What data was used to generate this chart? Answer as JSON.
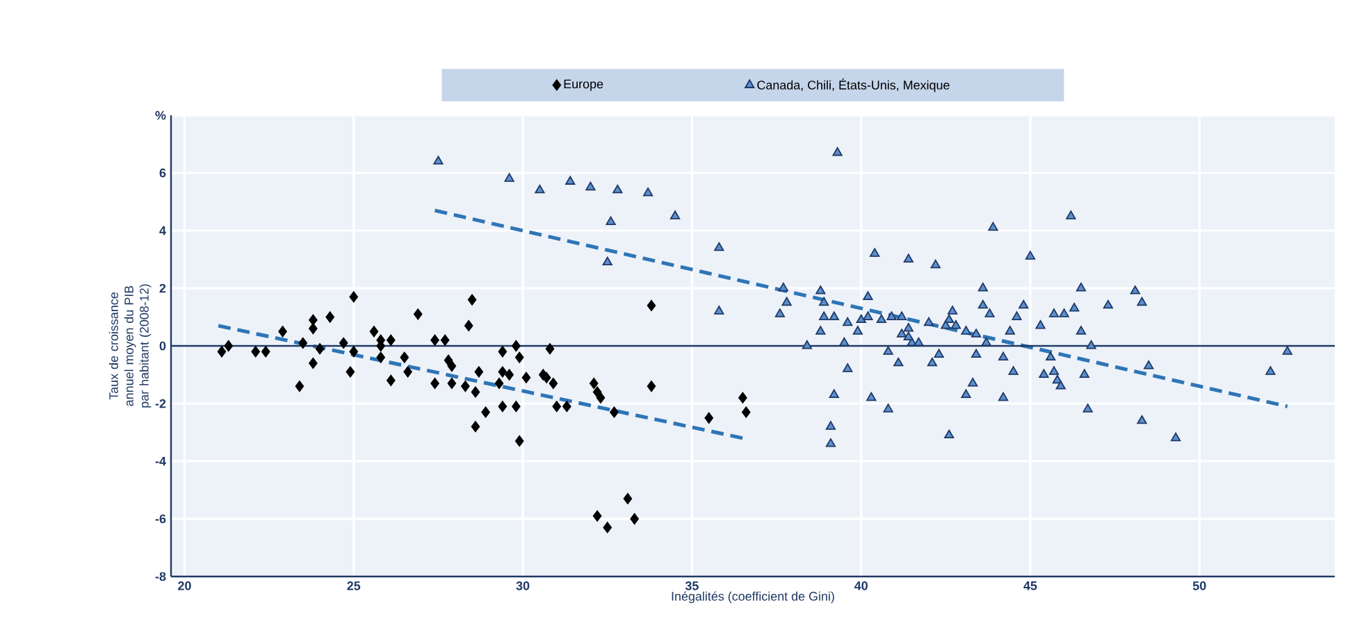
{
  "chart_data": {
    "type": "scatter",
    "xlabel": "Inégalités  (coefficient  de Gini)",
    "ylabel": "Taux de croissance annuel moyen du PIB par habitant (2008-12)",
    "xlim": [
      19.6,
      54
    ],
    "xticks": [
      20,
      25,
      30,
      35,
      40,
      45,
      50
    ],
    "ylim": [
      -8,
      8
    ],
    "yticks": [
      -8,
      -6,
      -4,
      -2,
      0,
      2,
      4,
      6,
      {
        "value": 8,
        "label": "%"
      }
    ],
    "grid": true,
    "legend": "top",
    "ref_lines": [
      {
        "axis": "y",
        "value": 0,
        "color": "#1f3864"
      }
    ],
    "series": [
      {
        "name": "Europe",
        "color": "#000000",
        "marker": "diamond",
        "x": [
          21.1,
          21.3,
          22.1,
          22.4,
          22.9,
          23.4,
          23.5,
          23.8,
          23.8,
          23.8,
          24.0,
          24.3,
          24.7,
          24.9,
          25.0,
          25.0,
          25.6,
          25.8,
          25.8,
          26.1,
          26.1,
          25.8,
          26.5,
          26.6,
          26.9,
          27.4,
          27.4,
          27.7,
          27.8,
          27.9,
          27.9,
          28.4,
          28.5,
          28.3,
          28.6,
          28.7,
          28.6,
          28.9,
          29.3,
          29.4,
          29.6,
          29.4,
          29.4,
          29.8,
          29.9,
          29.8,
          29.9,
          30.1,
          30.8,
          30.7,
          30.9,
          31.0,
          30.6,
          31.3,
          32.1,
          32.2,
          32.3,
          32.7,
          33.8,
          33.8,
          35.5,
          36.5,
          36.6,
          32.2,
          32.5,
          33.1,
          33.3
        ],
        "values": [
          -0.2,
          0.0,
          -0.2,
          -0.2,
          0.5,
          -1.4,
          0.1,
          0.9,
          0.6,
          -0.6,
          -0.1,
          1.0,
          0.1,
          -0.9,
          1.7,
          -0.2,
          0.5,
          0.2,
          0.0,
          0.2,
          -1.2,
          -0.4,
          -0.4,
          -0.9,
          1.1,
          0.2,
          -1.3,
          0.2,
          -0.5,
          -0.7,
          -1.3,
          0.7,
          1.6,
          -1.4,
          -1.6,
          -0.9,
          -2.8,
          -2.3,
          -1.3,
          -0.9,
          -1.0,
          -0.2,
          -2.1,
          0.0,
          -0.4,
          -2.1,
          -3.3,
          -1.1,
          -0.1,
          -1.1,
          -1.3,
          -2.1,
          -1.0,
          -2.1,
          -1.3,
          -1.6,
          -1.8,
          -2.3,
          1.4,
          -1.4,
          -2.5,
          -1.8,
          -2.3,
          -5.9,
          -6.3,
          -5.3,
          -6.0
        ]
      },
      {
        "name": "Canada, Chili, États-Unis, Mexique",
        "color": "#5b8fcf",
        "marker": "triangle",
        "x": [
          27.5,
          29.6,
          30.5,
          31.4,
          32.0,
          32.8,
          33.7,
          32.6,
          34.5,
          32.5,
          35.8,
          35.8,
          39.3,
          40.4,
          41.4,
          37.7,
          37.8,
          37.6,
          38.8,
          38.9,
          38.9,
          39.2,
          38.8,
          38.4,
          39.5,
          39.6,
          39.9,
          40.0,
          40.2,
          40.2,
          40.6,
          40.9,
          41.2,
          41.4,
          41.2,
          41.5,
          41.7,
          40.8,
          41.1,
          42.1,
          42.3,
          42.0,
          42.5,
          39.6,
          39.2,
          39.1,
          39.1,
          40.3,
          40.8,
          42.6,
          42.2,
          43.9,
          46.2,
          45.0,
          43.6,
          46.5,
          48.1,
          48.3,
          47.3,
          43.6,
          43.8,
          44.8,
          44.6,
          45.7,
          46.0,
          46.3,
          45.3,
          46.5,
          44.4,
          42.7,
          42.6,
          42.8,
          43.1,
          43.4,
          43.7,
          43.4,
          44.2,
          44.5,
          43.3,
          43.1,
          44.2,
          45.6,
          45.4,
          45.7,
          45.8,
          45.9,
          46.6,
          46.8,
          46.7,
          48.3,
          48.5,
          49.3,
          52.1,
          52.6,
          41.4
        ],
        "values": [
          6.4,
          5.8,
          5.4,
          5.7,
          5.5,
          5.4,
          5.3,
          4.3,
          4.5,
          2.9,
          3.4,
          1.2,
          6.7,
          3.2,
          3.0,
          2.0,
          1.5,
          1.1,
          1.9,
          1.5,
          1.0,
          1.0,
          0.5,
          0.0,
          0.1,
          0.8,
          0.5,
          0.9,
          1.7,
          1.0,
          0.9,
          1.0,
          1.0,
          0.6,
          0.4,
          0.1,
          0.1,
          -0.2,
          -0.6,
          -0.6,
          -0.3,
          0.8,
          0.7,
          -0.8,
          -1.7,
          -2.8,
          -3.4,
          -1.8,
          -2.2,
          -3.1,
          2.8,
          4.1,
          4.5,
          3.1,
          2.0,
          2.0,
          1.9,
          1.5,
          1.4,
          1.4,
          1.1,
          1.4,
          1.0,
          1.1,
          1.1,
          1.3,
          0.7,
          0.5,
          0.5,
          1.2,
          0.9,
          0.7,
          0.5,
          0.4,
          0.1,
          -0.3,
          -0.4,
          -0.9,
          -1.3,
          -1.7,
          -1.8,
          -0.4,
          -1.0,
          -0.9,
          -1.2,
          -1.4,
          -1.0,
          0.0,
          -2.2,
          -2.6,
          -0.7,
          -3.2,
          -0.9,
          -0.2,
          0.3
        ]
      },
      {
        "type": "line",
        "color": "#2e75b6",
        "line_style": "dashed",
        "marker": "none",
        "x": [
          21.0,
          36.5
        ],
        "values": [
          0.7,
          -3.2
        ]
      },
      {
        "type": "line",
        "color": "#2e75b6",
        "line_style": "dashed",
        "marker": "none",
        "x": [
          27.4,
          52.6
        ],
        "values": [
          4.7,
          -2.1
        ]
      }
    ]
  }
}
